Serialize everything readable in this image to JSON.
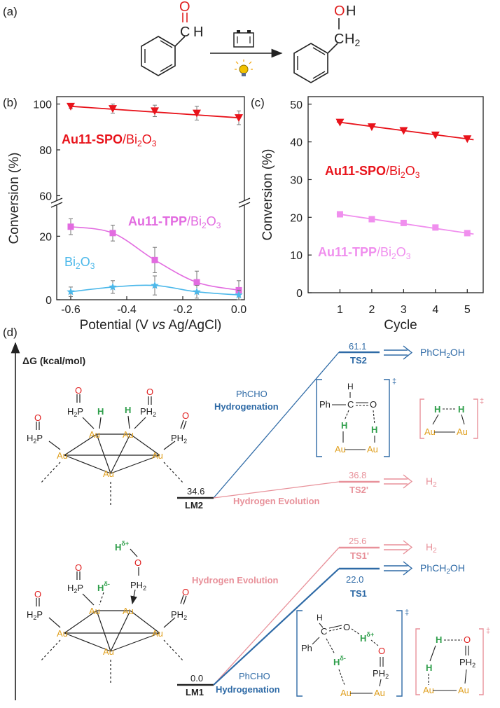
{
  "panel_labels": {
    "a": "(a)",
    "b": "(b)",
    "c": "(c)",
    "d": "(d)"
  },
  "scheme_a": {
    "reactant_atoms": {
      "o": "O",
      "c": "C",
      "h": "H"
    },
    "product_atoms": {
      "o": "O",
      "h": "H",
      "c": "C",
      "h2": "H",
      "sub2": "2"
    },
    "icons": [
      "battery-icon",
      "light-bulb-icon"
    ]
  },
  "chart_data": [
    {
      "type": "line",
      "panel": "(b)",
      "xlabel_parts": {
        "pre": "Potential (V ",
        "vs": "vs",
        "post": " Ag/AgCl)"
      },
      "ylabel": "Conversion (%)",
      "x_ticks": [
        "-0.6",
        "-0.4",
        "-0.2",
        "0.0"
      ],
      "y_ticks_upper": [
        "60",
        "80",
        "100"
      ],
      "y_ticks_lower": [
        "0",
        "20"
      ],
      "xlim": [
        -0.65,
        0.02
      ],
      "broken_axis": {
        "lower": [
          0,
          30
        ],
        "upper": [
          58,
          102
        ]
      },
      "series": [
        {
          "name": "Au11-SPO/Bi2O3",
          "label_bold": "Au11-SPO",
          "label_rest": "/Bi",
          "sub1": "2",
          "mid": "O",
          "sub2": "3",
          "color": "#e8131b",
          "marker": "triangle-down",
          "x": [
            -0.6,
            -0.45,
            -0.3,
            -0.15,
            0.0
          ],
          "y": [
            99,
            98,
            97,
            96,
            94
          ],
          "err": [
            1,
            2,
            2.5,
            3,
            3
          ]
        },
        {
          "name": "Au11-TPP/Bi2O3",
          "label_bold": "Au11-TPP",
          "label_rest": "/Bi",
          "sub1": "2",
          "mid": "O",
          "sub2": "3",
          "color": "#e26be0",
          "marker": "square",
          "x": [
            -0.6,
            -0.45,
            -0.3,
            -0.15,
            0.0
          ],
          "y": [
            23,
            21,
            12.5,
            5.5,
            3
          ],
          "err": [
            2.5,
            2.5,
            4,
            3.5,
            3
          ]
        },
        {
          "name": "Bi2O3",
          "label_bold": "",
          "label_rest": "Bi",
          "sub1": "2",
          "mid": "O",
          "sub2": "3",
          "color": "#4cb8ea",
          "marker": "star",
          "x": [
            -0.6,
            -0.45,
            -0.3,
            -0.15,
            0.0
          ],
          "y": [
            2.5,
            4,
            4.5,
            2.5,
            1.5
          ],
          "err": [
            1.5,
            2,
            3,
            2,
            1.5
          ]
        }
      ]
    },
    {
      "type": "line",
      "panel": "(c)",
      "xlabel": "Cycle",
      "ylabel": "Conversion (%)",
      "x_ticks": [
        "1",
        "2",
        "3",
        "4",
        "5"
      ],
      "y_ticks": [
        "0",
        "10",
        "20",
        "30",
        "40",
        "50"
      ],
      "xlim": [
        0,
        5.5
      ],
      "ylim": [
        0,
        52
      ],
      "series": [
        {
          "name": "Au11-SPO/Bi2O3",
          "label_bold": "Au11-SPO",
          "label_rest": "/Bi",
          "sub1": "2",
          "mid": "O",
          "sub2": "3",
          "color": "#e8131b",
          "marker": "triangle-down",
          "x": [
            1,
            2,
            3,
            4,
            5
          ],
          "y": [
            45.2,
            44.0,
            43.0,
            41.8,
            40.8
          ]
        },
        {
          "name": "Au11-TPP/Bi2O3",
          "label_bold": "Au11-TPP",
          "label_rest": "/Bi",
          "sub1": "2",
          "mid": "O",
          "sub2": "3",
          "color": "#f08fee",
          "marker": "square",
          "x": [
            1,
            2,
            3,
            4,
            5
          ],
          "y": [
            20.8,
            19.5,
            18.5,
            17.3,
            15.8
          ]
        }
      ]
    }
  ],
  "diagram_d": {
    "axis_label_parts": {
      "pre": "ΔG",
      "post": " (kcal/mol)"
    },
    "levels": {
      "lm1": {
        "value": "0.0",
        "name": "LM1"
      },
      "lm2": {
        "value": "34.6",
        "name": "LM2"
      },
      "ts1": {
        "value": "22.0",
        "name": "TS1"
      },
      "ts1p": {
        "value": "25.6",
        "name": "TS1'"
      },
      "ts2": {
        "value": "61.1",
        "name": "TS2"
      },
      "ts2p": {
        "value": "36.8",
        "name": "TS2'"
      }
    },
    "paths": {
      "hydrogenation_top": {
        "reactant": "PhCHO",
        "label": "Hydrogenation"
      },
      "hydrogen_evolution_top": "Hydrogen Evolution",
      "hydrogen_evolution_bottom": "Hydrogen Evolution",
      "hydrogenation_bottom": {
        "reactant": "PhCHO",
        "label": "Hydrogenation"
      }
    },
    "products": {
      "top_phch2oh": {
        "pre": "PhCH",
        "sub": "2",
        "post": "OH"
      },
      "top_h2": {
        "pre": "H",
        "sub": "2"
      },
      "bottom_h2": {
        "pre": "H",
        "sub": "2"
      },
      "bottom_phch2oh": {
        "pre": "PhCH",
        "sub": "2",
        "post": "OH"
      }
    },
    "atoms": {
      "au": "Au",
      "h": "H",
      "o": "O",
      "p": "P",
      "ph2_pre": "PH",
      "ph2_sub": "2",
      "h2p_pre": "H",
      "h2p_sub": "2",
      "h2p_post": "P",
      "ph": "Ph",
      "c": "C",
      "delta_plus": "δ+",
      "delta_minus": "δ-",
      "dagger": "‡"
    },
    "colors": {
      "blue": "#2e6aa6",
      "pink": "#e8919a",
      "gold": "#e0a020",
      "green": "#2e9e4a",
      "red": "#e02020",
      "black": "#222"
    }
  }
}
